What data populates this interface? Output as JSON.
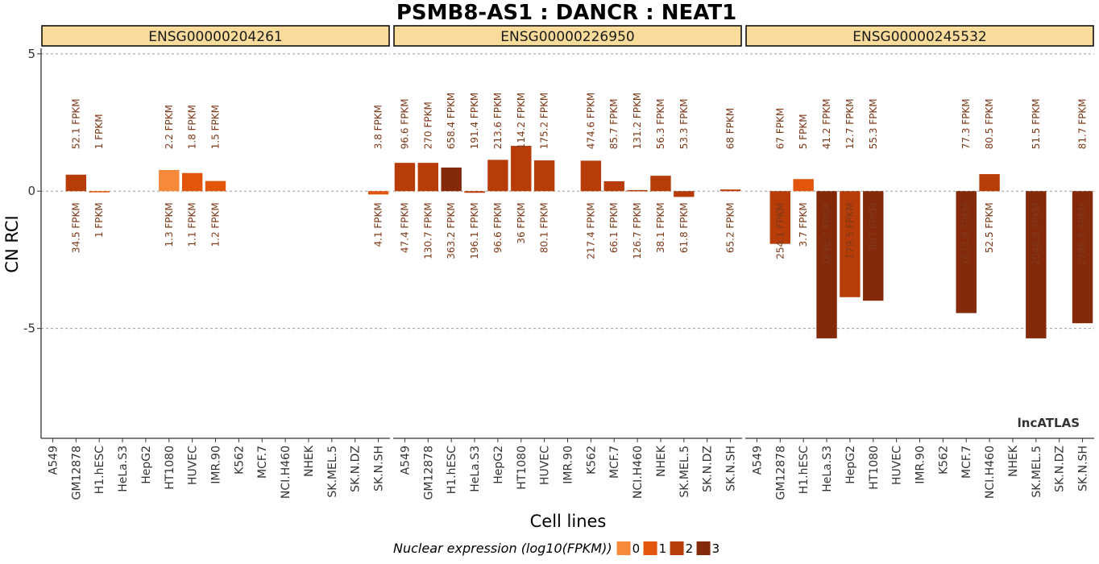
{
  "chart_data": {
    "type": "bar",
    "title": "PSMB8-AS1 : DANCR : NEAT1",
    "xlabel": "Cell lines",
    "ylabel": "CN RCI",
    "ylim": [
      -9.0,
      5.2
    ],
    "yticks": [
      5,
      0,
      -5
    ],
    "ytick_labels": [
      "5",
      "0",
      "-5"
    ],
    "gridlines": "dashed horizontal at y ticks",
    "categories": [
      "A549",
      "GM12878",
      "H1.hESC",
      "HeLa.S3",
      "HepG2",
      "HT1080",
      "HUVEC",
      "IMR.90",
      "K562",
      "MCF.7",
      "NCI.H460",
      "NHEK",
      "SK.MEL.5",
      "SK.N.DZ",
      "SK.N.SH"
    ],
    "panels": [
      {
        "name": "ENSG00000204261",
        "values": [
          null,
          0.6,
          -0.02,
          null,
          null,
          0.77,
          0.66,
          0.37,
          null,
          null,
          null,
          null,
          null,
          null,
          -0.12
        ],
        "levels": [
          null,
          2,
          1,
          null,
          null,
          0,
          1,
          1,
          null,
          null,
          null,
          null,
          null,
          null,
          1
        ],
        "top_labels": [
          null,
          "52.1 FPKM",
          "1 FPKM",
          null,
          null,
          "2.2 FPKM",
          "1.8 FPKM",
          "1.5 FPKM",
          null,
          null,
          null,
          null,
          null,
          null,
          "3.8 FPKM"
        ],
        "bottom_labels": [
          null,
          "34.5 FPKM",
          "1 FPKM",
          null,
          null,
          "1.3 FPKM",
          "1.1 FPKM",
          "1.2 FPKM",
          null,
          null,
          null,
          null,
          null,
          null,
          "4.1 FPKM"
        ]
      },
      {
        "name": "ENSG00000226950",
        "values": [
          1.03,
          1.03,
          0.86,
          -0.06,
          1.14,
          1.65,
          1.12,
          null,
          1.11,
          0.36,
          0.04,
          0.56,
          -0.21,
          null,
          0.06
        ],
        "levels": [
          2,
          2,
          3,
          2,
          2,
          2,
          2,
          null,
          2,
          2,
          2,
          2,
          2,
          null,
          2
        ],
        "top_labels": [
          "96.6 FPKM",
          "270 FPKM",
          "658.4 FPKM",
          "191.4 FPKM",
          "213.6 FPKM",
          "114.2 FPKM",
          "175.2 FPKM",
          null,
          "474.6 FPKM",
          "85.7 FPKM",
          "131.2 FPKM",
          "56.3 FPKM",
          "53.3 FPKM",
          null,
          "68 FPKM"
        ],
        "bottom_labels": [
          "47.4 FPKM",
          "130.7 FPKM",
          "363.2 FPKM",
          "196.1 FPKM",
          "96.6 FPKM",
          "36 FPKM",
          "80.1 FPKM",
          null,
          "217.4 FPKM",
          "66.1 FPKM",
          "126.7 FPKM",
          "38.1 FPKM",
          "61.8 FPKM",
          null,
          "65.2 FPKM"
        ]
      },
      {
        "name": "ENSG00000245532",
        "values": [
          null,
          -1.92,
          0.44,
          -5.36,
          -3.86,
          -3.99,
          null,
          null,
          null,
          -4.44,
          0.62,
          null,
          -5.36,
          null,
          -4.81
        ],
        "levels": [
          null,
          2,
          1,
          3,
          2,
          3,
          null,
          null,
          null,
          3,
          2,
          null,
          3,
          null,
          3
        ],
        "top_labels": [
          null,
          "67 FPKM",
          "5 FPKM",
          "41.2 FPKM",
          "12.7 FPKM",
          "55.3 FPKM",
          null,
          null,
          null,
          "77.3 FPKM",
          "80.5 FPKM",
          null,
          "51.5 FPKM",
          null,
          "81.7 FPKM"
        ],
        "bottom_labels": [
          null,
          "254.1 FPKM",
          "3.7 FPKM",
          "1636.7 FPKM",
          "179.5 FPKM",
          "867 FPKM",
          null,
          null,
          null,
          "1674.8 FPKM",
          "52.5 FPKM",
          null,
          "2048.8 FPKM",
          null,
          "2288.5 FPKM"
        ]
      }
    ],
    "legend": {
      "title": "Nuclear expression (log10(FPKM))",
      "position": "bottom",
      "items": [
        {
          "label": "0",
          "color": "#f58a3b"
        },
        {
          "label": "1",
          "color": "#e2550d"
        },
        {
          "label": "2",
          "color": "#b83c07"
        },
        {
          "label": "3",
          "color": "#84290a"
        }
      ]
    },
    "strip_fill": "#f9dc9c",
    "watermark": "lncATLAS"
  }
}
